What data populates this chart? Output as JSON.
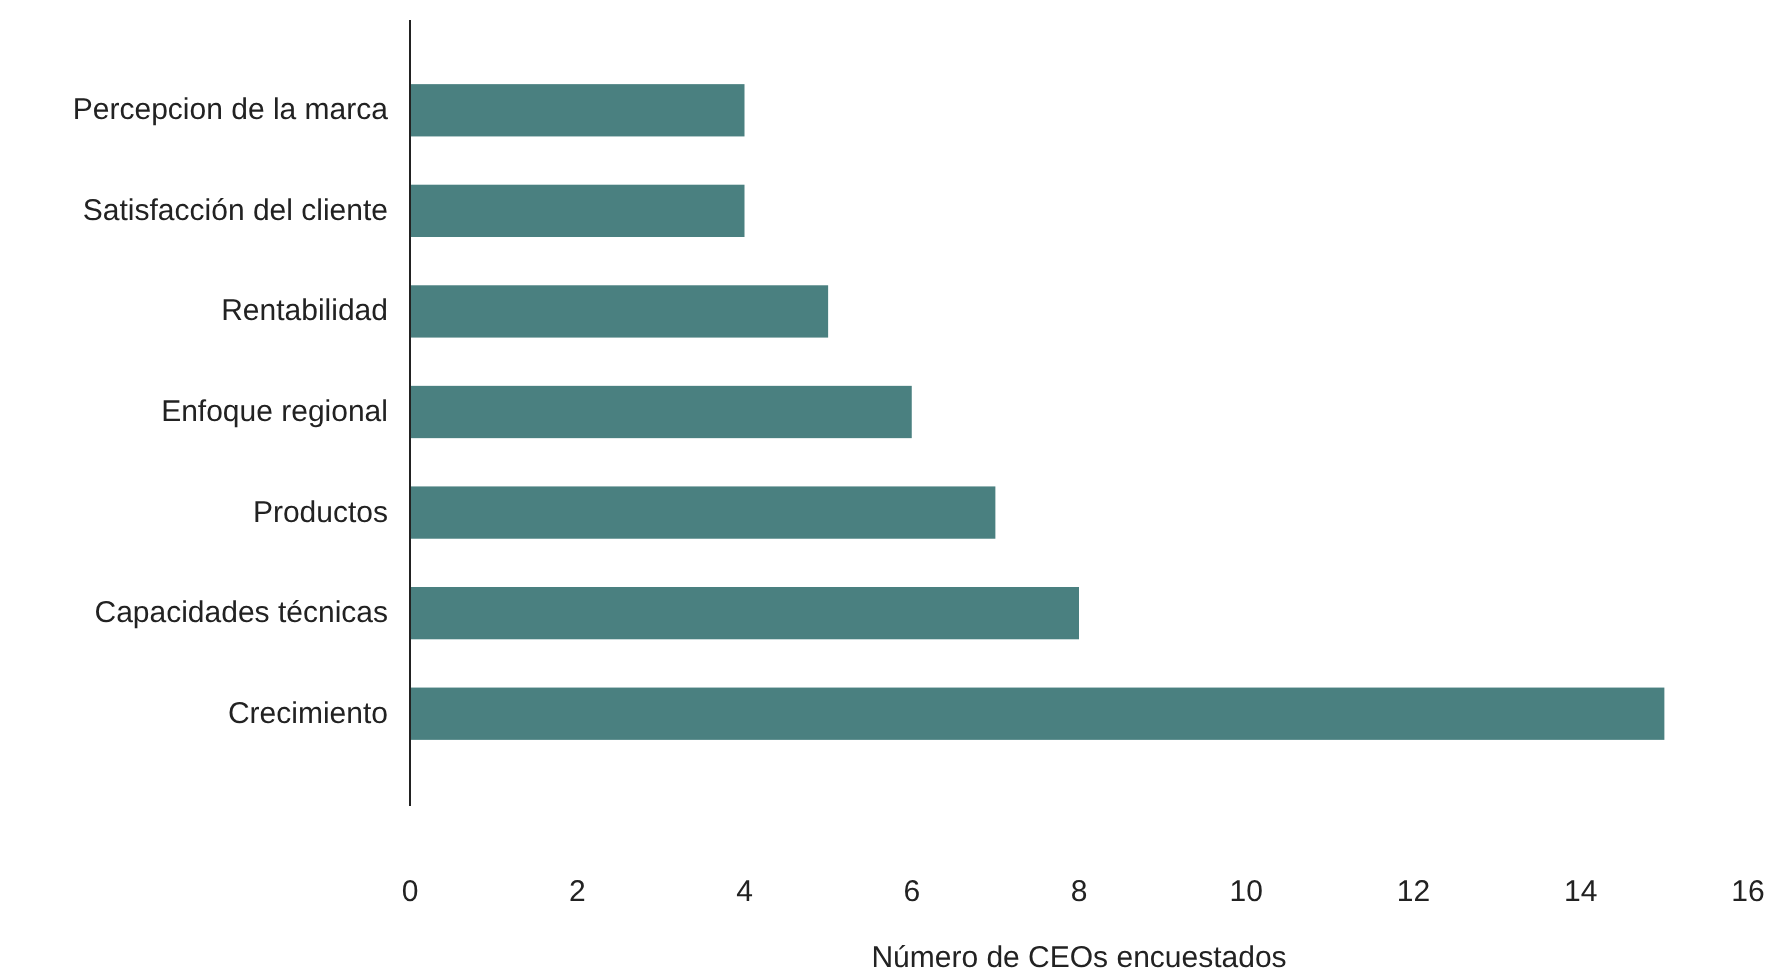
{
  "chart_data": {
    "type": "bar",
    "orientation": "horizontal",
    "xlabel": "Número de CEOs encuestados",
    "categories": [
      "Percepcion de la marca",
      "Satisfacción del cliente",
      "Rentabilidad",
      "Enfoque regional",
      "Productos",
      "Capacidades técnicas",
      "Crecimiento"
    ],
    "values": [
      4,
      4,
      5,
      6,
      7,
      8,
      15
    ],
    "color": "#4a8080",
    "xlim": [
      0,
      16
    ],
    "xticks": [
      0,
      2,
      4,
      6,
      8,
      10,
      12,
      14,
      16
    ],
    "grid": false
  }
}
